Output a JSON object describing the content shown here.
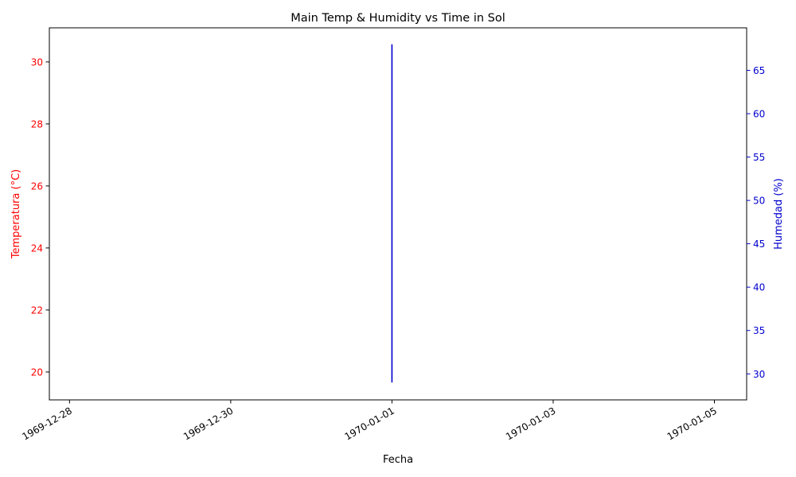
{
  "chart_data": {
    "type": "line",
    "title": "Main Temp & Humidity vs Time in Sol",
    "xlabel": "Fecha",
    "ylabel_left": "Temperatura (°C)",
    "ylabel_right": "Humedad (%)",
    "x_ticks": [
      "1969-12-28",
      "1969-12-30",
      "1970-01-01",
      "1970-01-03",
      "1970-01-05"
    ],
    "y_left_ticks": [
      20,
      22,
      24,
      26,
      28,
      30
    ],
    "y_right_ticks": [
      30,
      35,
      40,
      45,
      50,
      55,
      60,
      65
    ],
    "y_left_lim": [
      19.1,
      31.1
    ],
    "y_right_lim": [
      27.0,
      69.9
    ],
    "x_range_days": [
      "1969-12-27T18:00",
      "1970-01-05T09:36"
    ],
    "grid": false,
    "colors": {
      "left_axis": "#ff0000",
      "right_axis": "#0000cd",
      "humidity_line": "#0000cd",
      "temperature_line": "#ff0000"
    },
    "series": [
      {
        "axis": "right",
        "color": "#0000cd",
        "points": [
          {
            "x": "1970-01-01",
            "y": 29.0
          },
          {
            "x": "1970-01-01",
            "y": 68.0
          }
        ]
      },
      {
        "axis": "left",
        "color": "#ff0000",
        "points": []
      }
    ]
  }
}
